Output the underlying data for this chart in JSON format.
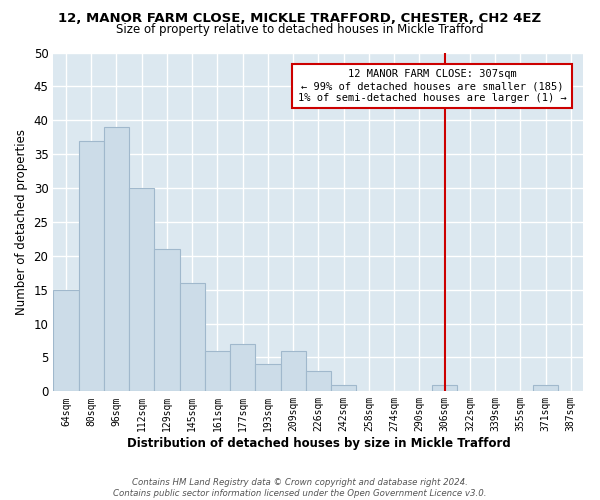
{
  "title": "12, MANOR FARM CLOSE, MICKLE TRAFFORD, CHESTER, CH2 4EZ",
  "subtitle": "Size of property relative to detached houses in Mickle Trafford",
  "xlabel": "Distribution of detached houses by size in Mickle Trafford",
  "ylabel": "Number of detached properties",
  "bar_color": "#ccdce8",
  "bar_edge_color": "#a0b8cc",
  "categories": [
    "64sqm",
    "80sqm",
    "96sqm",
    "112sqm",
    "129sqm",
    "145sqm",
    "161sqm",
    "177sqm",
    "193sqm",
    "209sqm",
    "226sqm",
    "242sqm",
    "258sqm",
    "274sqm",
    "290sqm",
    "306sqm",
    "322sqm",
    "339sqm",
    "355sqm",
    "371sqm",
    "387sqm"
  ],
  "values": [
    15,
    37,
    39,
    30,
    21,
    16,
    6,
    7,
    4,
    6,
    3,
    1,
    0,
    0,
    0,
    1,
    0,
    0,
    0,
    1,
    0
  ],
  "ylim": [
    0,
    50
  ],
  "yticks": [
    0,
    5,
    10,
    15,
    20,
    25,
    30,
    35,
    40,
    45,
    50
  ],
  "annotation_title": "12 MANOR FARM CLOSE: 307sqm",
  "annotation_line1": "← 99% of detached houses are smaller (185)",
  "annotation_line2": "1% of semi-detached houses are larger (1) →",
  "vline_color": "#cc0000",
  "annotation_box_color": "#cc0000",
  "footer1": "Contains HM Land Registry data © Crown copyright and database right 2024.",
  "footer2": "Contains public sector information licensed under the Open Government Licence v3.0.",
  "bg_color": "#dce8f0"
}
